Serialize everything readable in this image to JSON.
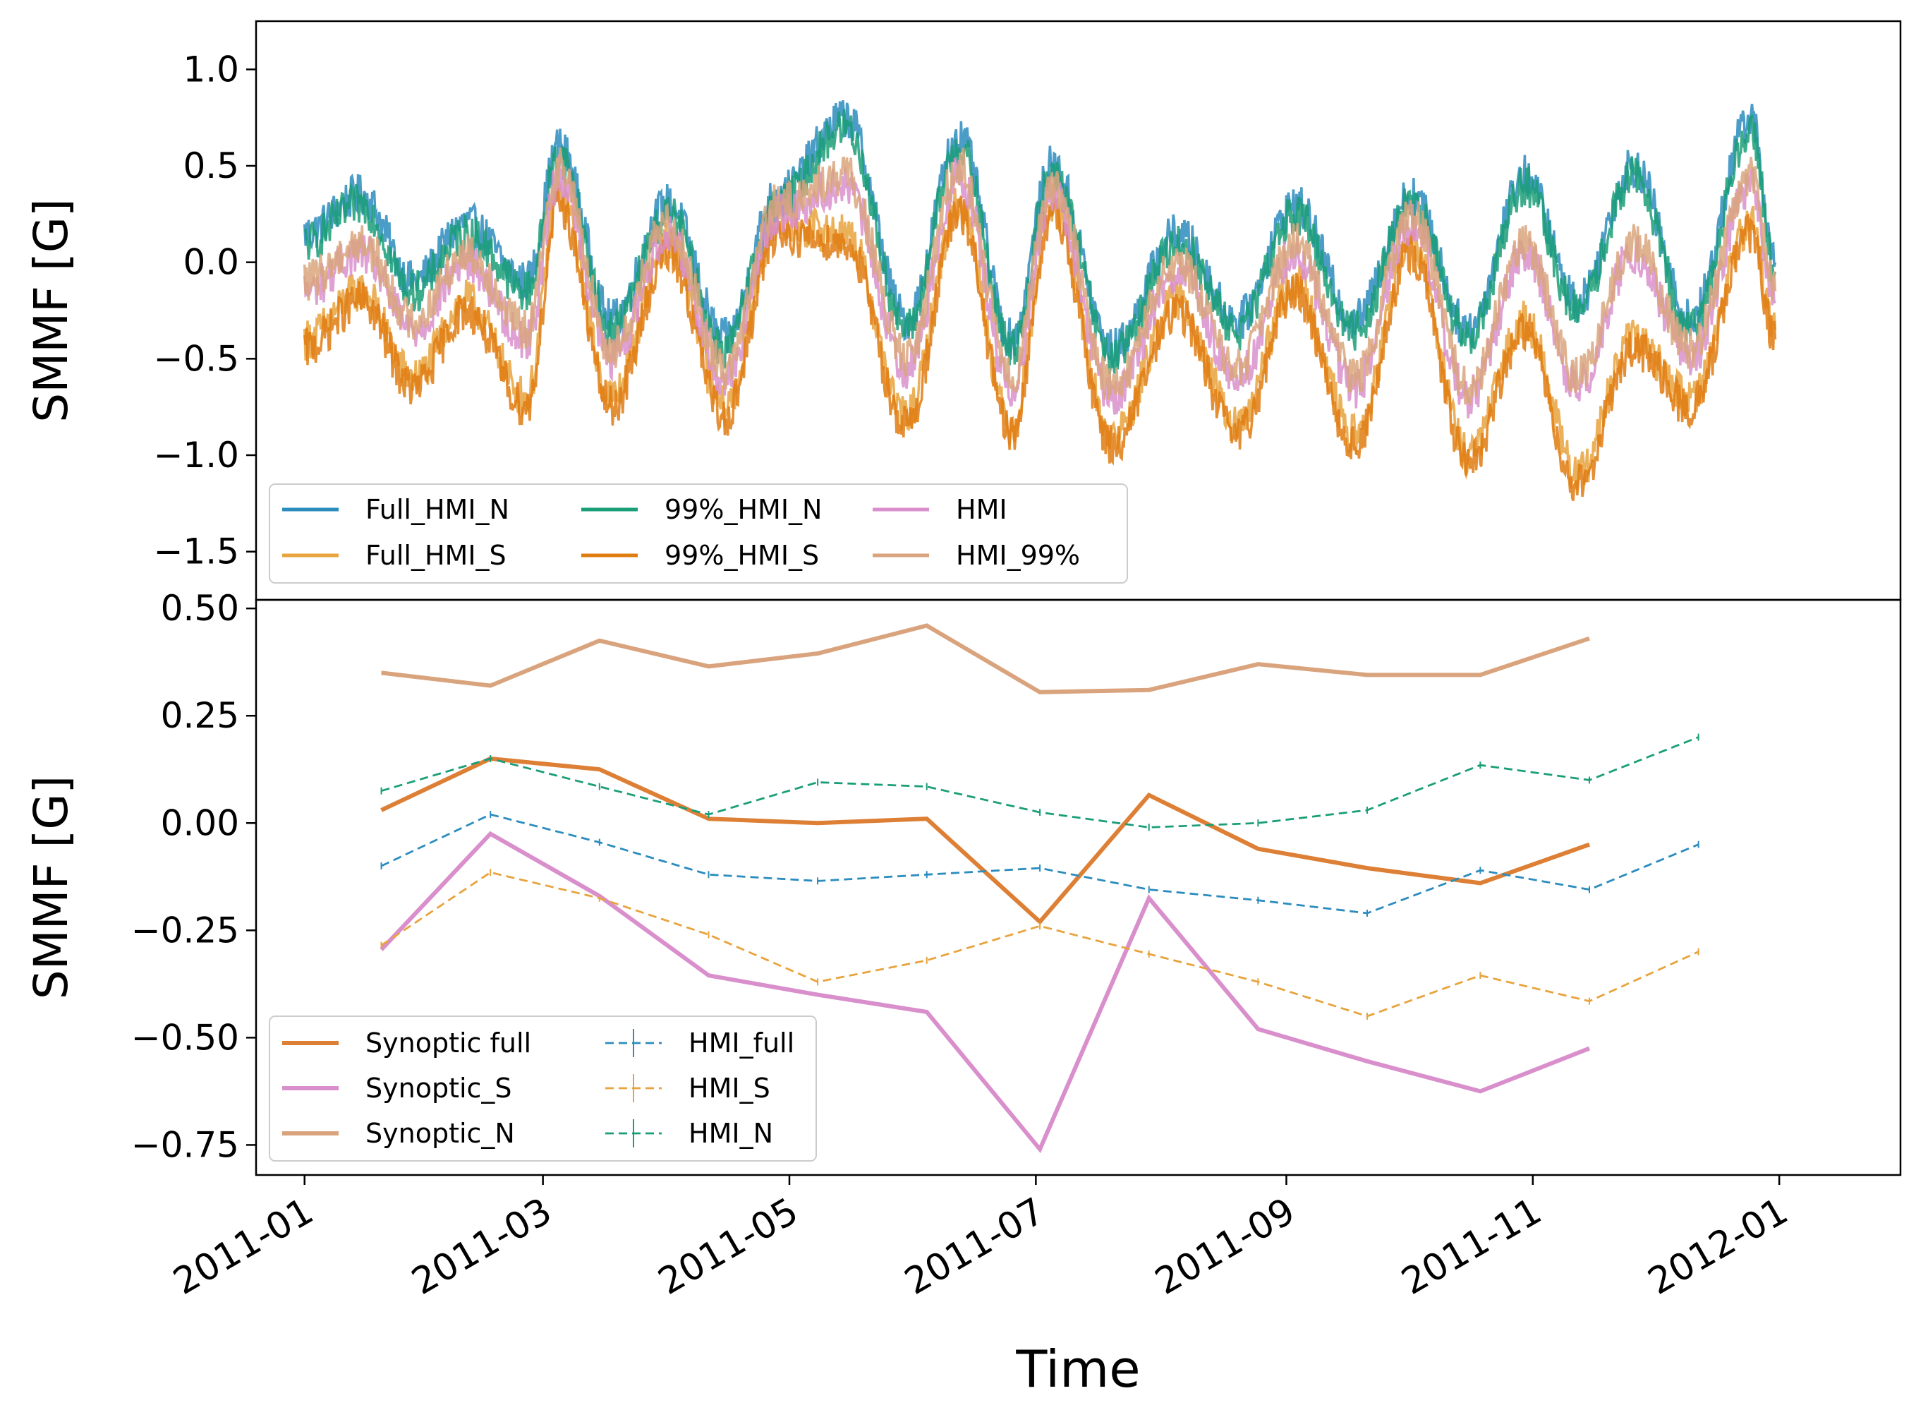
{
  "chart_data": [
    {
      "type": "line",
      "ylabel": "SMMF [G]",
      "ylim": [
        -1.75,
        1.25
      ],
      "yticks": [
        1.0,
        0.5,
        0.0,
        -0.5,
        -1.0,
        -1.5
      ],
      "ytick_labels": [
        "1.0",
        "0.5",
        "0.0",
        "−0.5",
        "−1.0",
        "−1.5"
      ],
      "legend": {
        "placement": "lower-left",
        "columns": 3
      },
      "series": [
        {
          "name": "Full_HMI_N",
          "color": "#2b8cbe",
          "x": [
            "2011-01-01",
            "2011-01-15",
            "2011-01-28",
            "2011-02-10",
            "2011-02-25",
            "2011-03-05",
            "2011-03-18",
            "2011-04-01",
            "2011-04-15",
            "2011-04-28",
            "2011-05-15",
            "2011-05-30",
            "2011-06-12",
            "2011-06-25",
            "2011-07-05",
            "2011-07-20",
            "2011-08-05",
            "2011-08-20",
            "2011-09-03",
            "2011-09-18",
            "2011-10-02",
            "2011-10-16",
            "2011-10-30",
            "2011-11-12",
            "2011-11-26",
            "2011-12-10",
            "2011-12-25",
            "2011-12-31"
          ],
          "y": [
            0.15,
            0.35,
            -0.1,
            0.2,
            -0.1,
            0.6,
            -0.3,
            0.3,
            -0.4,
            0.35,
            0.75,
            -0.3,
            0.65,
            -0.4,
            0.5,
            -0.45,
            0.15,
            -0.3,
            0.3,
            -0.3,
            0.35,
            -0.35,
            0.45,
            -0.2,
            0.5,
            -0.3,
            0.75,
            0.0
          ]
        },
        {
          "name": "Full_HMI_S",
          "color": "#e8a33d",
          "x": [
            "2011-01-01",
            "2011-01-15",
            "2011-01-28",
            "2011-02-10",
            "2011-02-25",
            "2011-03-05",
            "2011-03-18",
            "2011-04-01",
            "2011-04-15",
            "2011-04-28",
            "2011-05-15",
            "2011-05-30",
            "2011-06-12",
            "2011-06-25",
            "2011-07-05",
            "2011-07-20",
            "2011-08-05",
            "2011-08-20",
            "2011-09-03",
            "2011-09-18",
            "2011-10-02",
            "2011-10-16",
            "2011-10-30",
            "2011-11-12",
            "2011-11-26",
            "2011-12-10",
            "2011-12-25",
            "2011-12-31"
          ],
          "y": [
            -0.4,
            -0.15,
            -0.6,
            -0.2,
            -0.7,
            0.35,
            -0.7,
            0.1,
            -0.75,
            0.2,
            0.15,
            -0.8,
            0.3,
            -0.85,
            0.3,
            -0.9,
            -0.2,
            -0.85,
            -0.1,
            -0.9,
            0.1,
            -1.0,
            -0.3,
            -1.1,
            -0.4,
            -0.7,
            0.2,
            -0.35
          ]
        },
        {
          "name": "99%_HMI_N",
          "color": "#1a9e77",
          "x": [
            "2011-01-01",
            "2011-01-15",
            "2011-01-28",
            "2011-02-10",
            "2011-02-25",
            "2011-03-05",
            "2011-03-18",
            "2011-04-01",
            "2011-04-15",
            "2011-04-28",
            "2011-05-15",
            "2011-05-30",
            "2011-06-12",
            "2011-06-25",
            "2011-07-05",
            "2011-07-20",
            "2011-08-05",
            "2011-08-20",
            "2011-09-03",
            "2011-09-18",
            "2011-10-02",
            "2011-10-16",
            "2011-10-30",
            "2011-11-12",
            "2011-11-26",
            "2011-12-10",
            "2011-12-25",
            "2011-12-31"
          ],
          "y": [
            0.1,
            0.3,
            -0.15,
            0.15,
            -0.15,
            0.55,
            -0.35,
            0.25,
            -0.45,
            0.3,
            0.7,
            -0.35,
            0.6,
            -0.45,
            0.45,
            -0.5,
            0.1,
            -0.35,
            0.25,
            -0.35,
            0.3,
            -0.4,
            0.4,
            -0.25,
            0.45,
            -0.35,
            0.7,
            -0.05
          ]
        },
        {
          "name": "99%_HMI_S",
          "color": "#e07b10",
          "x": [
            "2011-01-01",
            "2011-01-15",
            "2011-01-28",
            "2011-02-10",
            "2011-02-25",
            "2011-03-05",
            "2011-03-18",
            "2011-04-01",
            "2011-04-15",
            "2011-04-28",
            "2011-05-15",
            "2011-05-30",
            "2011-06-12",
            "2011-06-25",
            "2011-07-05",
            "2011-07-20",
            "2011-08-05",
            "2011-08-20",
            "2011-09-03",
            "2011-09-18",
            "2011-10-02",
            "2011-10-16",
            "2011-10-30",
            "2011-11-12",
            "2011-11-26",
            "2011-12-10",
            "2011-12-25",
            "2011-12-31"
          ],
          "y": [
            -0.45,
            -0.2,
            -0.65,
            -0.25,
            -0.75,
            0.3,
            -0.75,
            0.05,
            -0.8,
            0.15,
            0.1,
            -0.85,
            0.25,
            -0.9,
            0.25,
            -0.95,
            -0.25,
            -0.9,
            -0.15,
            -0.95,
            0.05,
            -1.05,
            -0.35,
            -1.15,
            -0.45,
            -0.75,
            0.15,
            -0.4
          ]
        },
        {
          "name": "HMI",
          "color": "#d98fcc",
          "x": [
            "2011-01-01",
            "2011-01-15",
            "2011-01-28",
            "2011-02-10",
            "2011-02-25",
            "2011-03-05",
            "2011-03-18",
            "2011-04-01",
            "2011-04-15",
            "2011-04-28",
            "2011-05-15",
            "2011-05-30",
            "2011-06-12",
            "2011-06-25",
            "2011-07-05",
            "2011-07-20",
            "2011-08-05",
            "2011-08-20",
            "2011-09-03",
            "2011-09-18",
            "2011-10-02",
            "2011-10-16",
            "2011-10-30",
            "2011-11-12",
            "2011-11-26",
            "2011-12-10",
            "2011-12-25",
            "2011-12-31"
          ],
          "y": [
            -0.15,
            0.05,
            -0.35,
            0.0,
            -0.4,
            0.45,
            -0.5,
            0.15,
            -0.6,
            0.25,
            0.4,
            -0.55,
            0.45,
            -0.65,
            0.35,
            -0.7,
            -0.05,
            -0.6,
            0.05,
            -0.65,
            0.2,
            -0.7,
            0.05,
            -0.65,
            0.05,
            -0.5,
            0.4,
            -0.2
          ]
        },
        {
          "name": "HMI_99%",
          "color": "#d9a47d",
          "x": [
            "2011-01-01",
            "2011-01-15",
            "2011-01-28",
            "2011-02-10",
            "2011-02-25",
            "2011-03-05",
            "2011-03-18",
            "2011-04-01",
            "2011-04-15",
            "2011-04-28",
            "2011-05-15",
            "2011-05-30",
            "2011-06-12",
            "2011-06-25",
            "2011-07-05",
            "2011-07-20",
            "2011-08-05",
            "2011-08-20",
            "2011-09-03",
            "2011-09-18",
            "2011-10-02",
            "2011-10-16",
            "2011-10-30",
            "2011-11-12",
            "2011-11-26",
            "2011-12-10",
            "2011-12-25",
            "2011-12-31"
          ],
          "y": [
            -0.1,
            0.1,
            -0.3,
            0.05,
            -0.35,
            0.5,
            -0.45,
            0.2,
            -0.55,
            0.3,
            0.45,
            -0.5,
            0.5,
            -0.6,
            0.4,
            -0.65,
            0.0,
            -0.55,
            0.1,
            -0.6,
            0.25,
            -0.65,
            0.1,
            -0.6,
            0.1,
            -0.45,
            0.45,
            -0.15
          ]
        }
      ]
    },
    {
      "type": "line",
      "xlabel": "Time",
      "ylabel": "SMMF [G]",
      "ylim": [
        -0.82,
        0.52
      ],
      "yticks": [
        0.5,
        0.25,
        0.0,
        -0.25,
        -0.5,
        -0.75
      ],
      "ytick_labels": [
        "0.50",
        "0.25",
        "0.00",
        "−0.25",
        "−0.50",
        "−0.75"
      ],
      "xlim": [
        "2010-12-20",
        "2012-01-31"
      ],
      "xticks": [
        "2011-01-01",
        "2011-03-01",
        "2011-05-01",
        "2011-07-01",
        "2011-09-01",
        "2011-11-01",
        "2012-01-01"
      ],
      "xtick_labels": [
        "2011-01",
        "2011-03",
        "2011-05",
        "2011-07",
        "2011-09",
        "2011-11",
        "2012-01"
      ],
      "legend": {
        "placement": "lower-left",
        "columns": 2
      },
      "series": [
        {
          "name": "Synoptic full",
          "color": "#dd7f35",
          "style": "solid",
          "x": [
            "2011-01-20",
            "2011-02-16",
            "2011-03-15",
            "2011-04-11",
            "2011-05-08",
            "2011-06-04",
            "2011-07-02",
            "2011-07-29",
            "2011-08-25",
            "2011-09-21",
            "2011-10-19",
            "2011-11-15"
          ],
          "y": [
            0.03,
            0.15,
            0.125,
            0.01,
            0.0,
            0.01,
            -0.23,
            0.065,
            -0.06,
            -0.105,
            -0.14,
            -0.05
          ]
        },
        {
          "name": "Synoptic_S",
          "color": "#d98fcc",
          "style": "solid",
          "x": [
            "2011-01-20",
            "2011-02-16",
            "2011-03-15",
            "2011-04-11",
            "2011-05-08",
            "2011-06-04",
            "2011-07-02",
            "2011-07-29",
            "2011-08-25",
            "2011-09-21",
            "2011-10-19",
            "2011-11-15"
          ],
          "y": [
            -0.295,
            -0.025,
            -0.17,
            -0.355,
            -0.4,
            -0.44,
            -0.76,
            -0.175,
            -0.48,
            -0.555,
            -0.625,
            -0.525
          ]
        },
        {
          "name": "Synoptic_N",
          "color": "#d9a47d",
          "style": "solid",
          "x": [
            "2011-01-20",
            "2011-02-16",
            "2011-03-15",
            "2011-04-11",
            "2011-05-08",
            "2011-06-04",
            "2011-07-02",
            "2011-07-29",
            "2011-08-25",
            "2011-09-21",
            "2011-10-19",
            "2011-11-15"
          ],
          "y": [
            0.35,
            0.32,
            0.425,
            0.365,
            0.395,
            0.46,
            0.305,
            0.31,
            0.37,
            0.345,
            0.345,
            0.43
          ]
        },
        {
          "name": "HMI_full",
          "color": "#2b8cbe",
          "style": "dashed",
          "x": [
            "2011-01-20",
            "2011-02-16",
            "2011-03-15",
            "2011-04-11",
            "2011-05-08",
            "2011-06-04",
            "2011-07-02",
            "2011-07-29",
            "2011-08-25",
            "2011-09-21",
            "2011-10-19",
            "2011-11-15",
            "2011-12-12"
          ],
          "y": [
            -0.1,
            0.02,
            -0.045,
            -0.12,
            -0.135,
            -0.12,
            -0.105,
            -0.155,
            -0.18,
            -0.21,
            -0.11,
            -0.155,
            -0.05
          ]
        },
        {
          "name": "HMI_S",
          "color": "#e8a33d",
          "style": "dashed",
          "x": [
            "2011-01-20",
            "2011-02-16",
            "2011-03-15",
            "2011-04-11",
            "2011-05-08",
            "2011-06-04",
            "2011-07-02",
            "2011-07-29",
            "2011-08-25",
            "2011-09-21",
            "2011-10-19",
            "2011-11-15",
            "2011-12-12"
          ],
          "y": [
            -0.285,
            -0.115,
            -0.175,
            -0.26,
            -0.37,
            -0.32,
            -0.24,
            -0.305,
            -0.37,
            -0.45,
            -0.355,
            -0.415,
            -0.3
          ]
        },
        {
          "name": "HMI_N",
          "color": "#1a9e77",
          "style": "dashed",
          "x": [
            "2011-01-20",
            "2011-02-16",
            "2011-03-15",
            "2011-04-11",
            "2011-05-08",
            "2011-06-04",
            "2011-07-02",
            "2011-07-29",
            "2011-08-25",
            "2011-09-21",
            "2011-10-19",
            "2011-11-15",
            "2011-12-12"
          ],
          "y": [
            0.075,
            0.15,
            0.085,
            0.02,
            0.095,
            0.085,
            0.025,
            -0.01,
            0.0,
            0.03,
            0.135,
            0.1,
            0.2
          ]
        }
      ]
    }
  ]
}
